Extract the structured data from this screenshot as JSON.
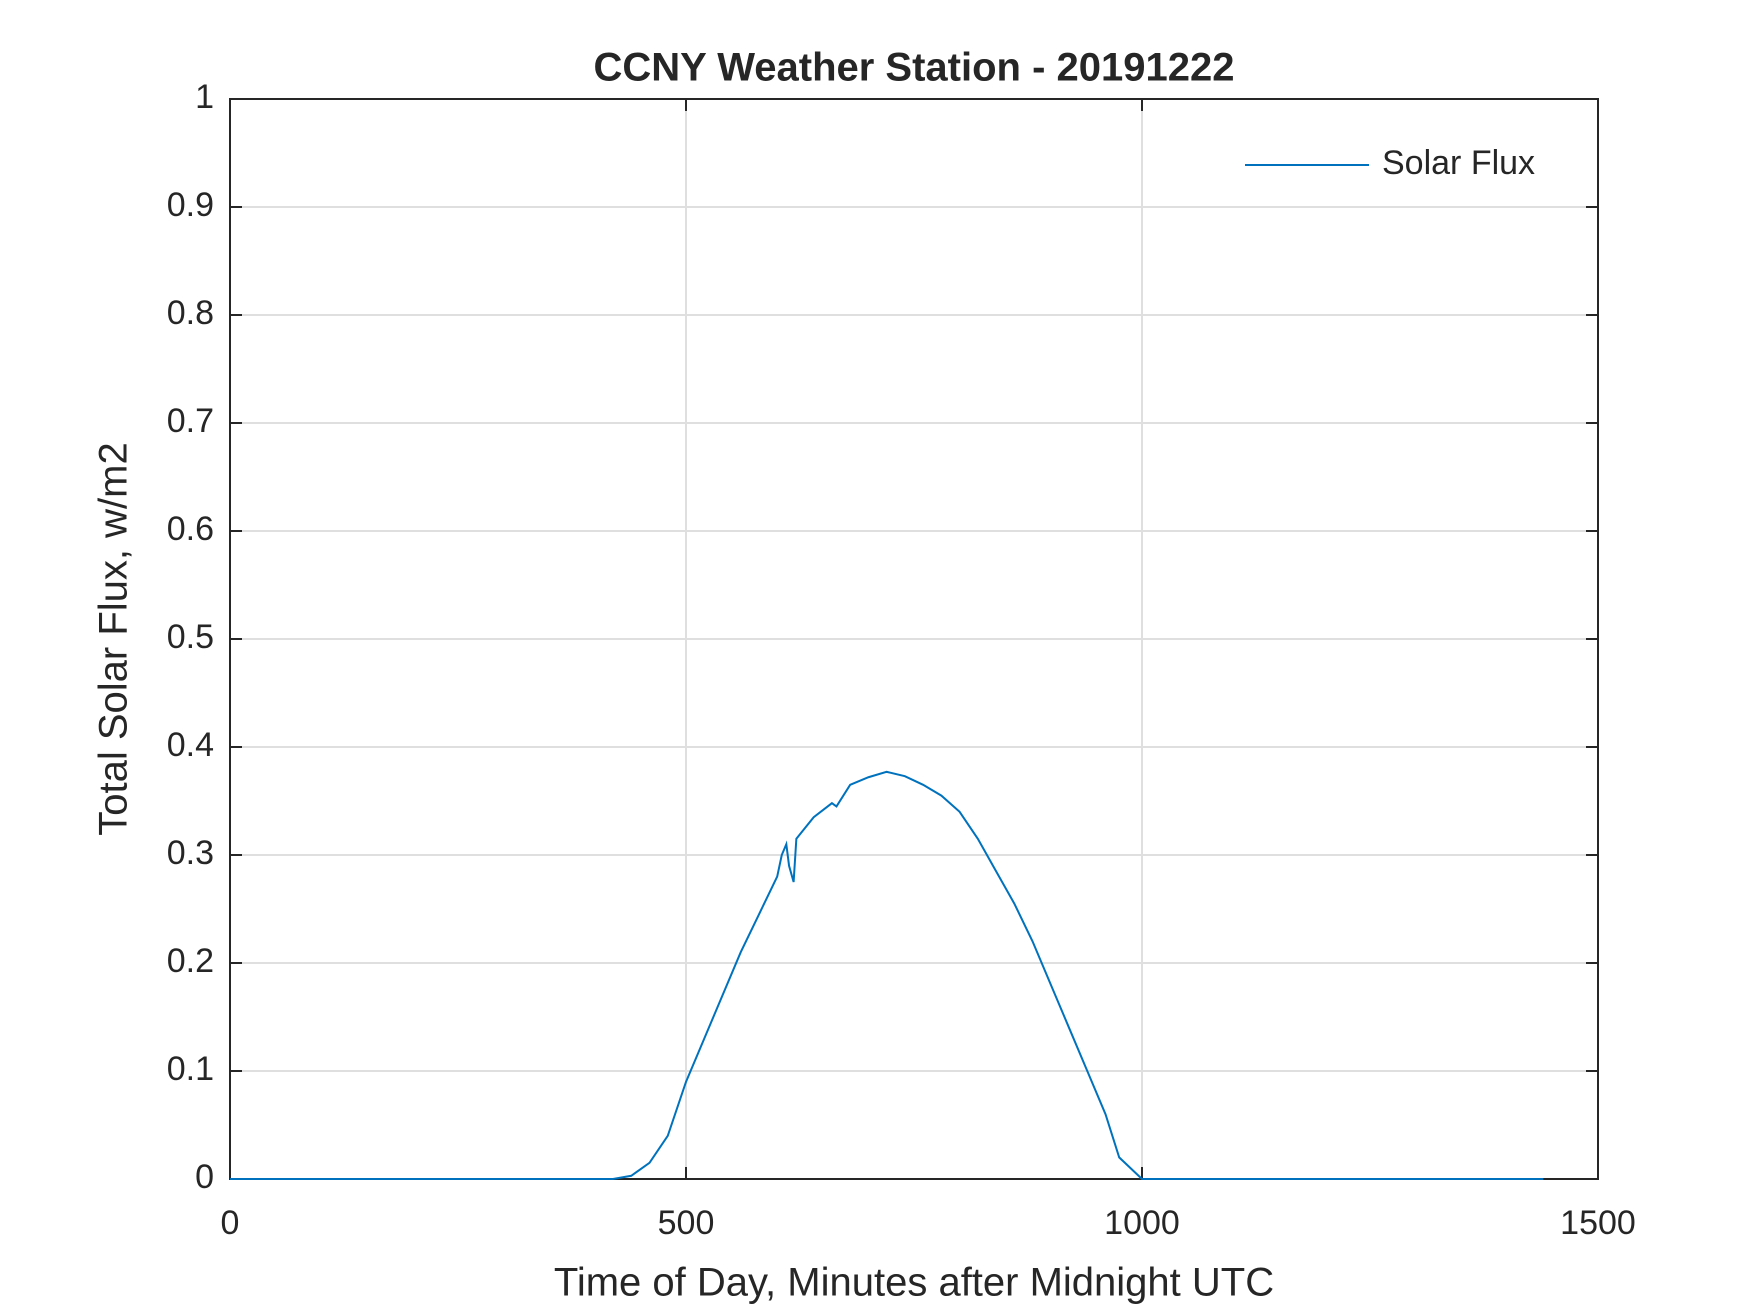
{
  "chart_data": {
    "type": "line",
    "title": "CCNY Weather Station - 20191222",
    "xlabel": "Time of Day, Minutes after Midnight UTC",
    "ylabel": "Total Solar Flux, w/m2",
    "x": [
      0,
      420,
      440,
      460,
      480,
      500,
      520,
      540,
      560,
      580,
      600,
      605,
      610,
      613,
      618,
      621,
      640,
      660,
      665,
      680,
      700,
      720,
      740,
      760,
      780,
      800,
      820,
      840,
      860,
      880,
      900,
      920,
      940,
      960,
      975,
      990,
      1000,
      1440
    ],
    "series": [
      {
        "name": "Solar Flux",
        "color": "#0072bd",
        "values": [
          0,
          0,
          0.003,
          0.015,
          0.04,
          0.09,
          0.13,
          0.17,
          0.21,
          0.245,
          0.28,
          0.3,
          0.31,
          0.29,
          0.275,
          0.315,
          0.335,
          0.348,
          0.345,
          0.365,
          0.372,
          0.377,
          0.373,
          0.365,
          0.355,
          0.34,
          0.315,
          0.285,
          0.255,
          0.22,
          0.18,
          0.14,
          0.1,
          0.06,
          0.02,
          0.008,
          0,
          0
        ]
      }
    ],
    "xlim": [
      0,
      1500
    ],
    "xticks": [
      0,
      500,
      1000,
      1500
    ],
    "ylim": [
      0,
      1
    ],
    "yticks": [
      0,
      0.1,
      0.2,
      0.3,
      0.4,
      0.5,
      0.6,
      0.7,
      0.8,
      0.9,
      1
    ],
    "grid": true,
    "legend": "top-right"
  }
}
